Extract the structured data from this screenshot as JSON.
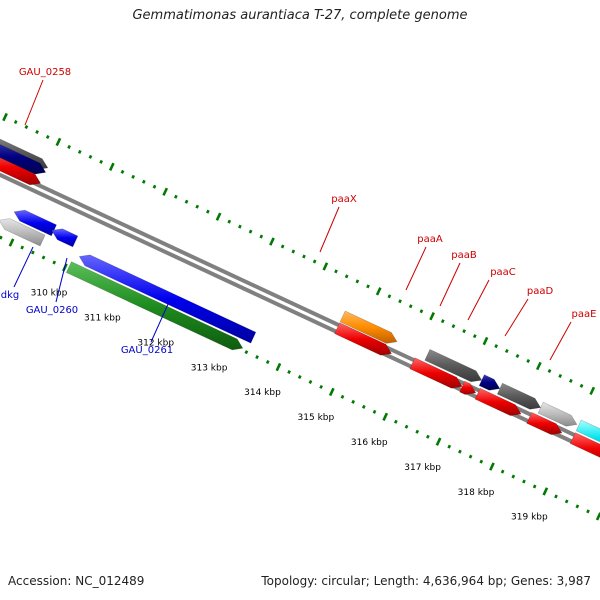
{
  "title": "Gemmatimonas aurantiaca T-27, complete genome",
  "footer": {
    "accession": "Accession: NC_012489",
    "topology": "Topology: circular; Length: 4,636,964 bp; Genes: 3,987"
  },
  "ticks": [
    "310 kbp",
    "311 kbp",
    "312 kbp",
    "313 kbp",
    "314 kbp",
    "315 kbp",
    "316 kbp",
    "317 kbp",
    "318 kbp",
    "319 kbp"
  ],
  "gene_labels": {
    "forward": [
      "GAU_0258",
      "paaX",
      "paaA",
      "paaB",
      "paaC",
      "paaD",
      "paaE"
    ],
    "reverse": [
      "dkg",
      "GAU_0260",
      "GAU_0261"
    ]
  },
  "colors": {
    "forward_label": "#cc0000",
    "reverse_label": "#0000cc",
    "cds": "#ee0000",
    "blue": "#0000ee",
    "green": "#1e8c1e",
    "orange": "#ff8c00",
    "cyan": "#00e5ee",
    "dark_gray": "#5a5a5a",
    "light_gray": "#bbbbbb",
    "navy": "#000080",
    "tick": "#007a00",
    "backbone": "#808080"
  }
}
